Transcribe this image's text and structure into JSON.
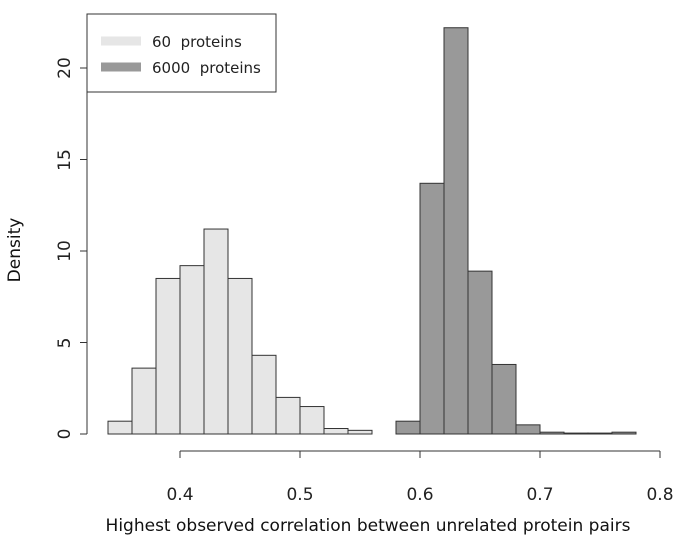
{
  "chart_data": {
    "type": "bar",
    "xlabel": "Highest observed correlation between unrelated protein pairs",
    "ylabel": "Density",
    "xlim": [
      0.34,
      0.8
    ],
    "ylim": [
      0,
      23
    ],
    "x_ticks": [
      "0.4",
      "0.5",
      "0.6",
      "0.7",
      "0.8"
    ],
    "y_ticks": [
      "0",
      "5",
      "10",
      "15",
      "20"
    ],
    "legend_position": "top-left",
    "series": [
      {
        "name": "60  proteins",
        "color": "#e6e6e6",
        "bin_width": 0.02,
        "bin_starts": [
          0.34,
          0.36,
          0.38,
          0.4,
          0.42,
          0.44,
          0.46,
          0.48,
          0.5,
          0.52,
          0.54
        ],
        "values": [
          0.7,
          3.6,
          8.5,
          9.2,
          11.2,
          8.5,
          4.3,
          2.0,
          1.5,
          0.3,
          0.2
        ]
      },
      {
        "name": "6000  proteins",
        "color": "#999999",
        "bin_width": 0.02,
        "bin_starts": [
          0.58,
          0.6,
          0.62,
          0.64,
          0.66,
          0.68,
          0.7,
          0.72,
          0.74,
          0.76
        ],
        "values": [
          0.7,
          13.7,
          22.2,
          8.9,
          3.8,
          0.5,
          0.1,
          0.05,
          0.05,
          0.1
        ]
      }
    ]
  }
}
